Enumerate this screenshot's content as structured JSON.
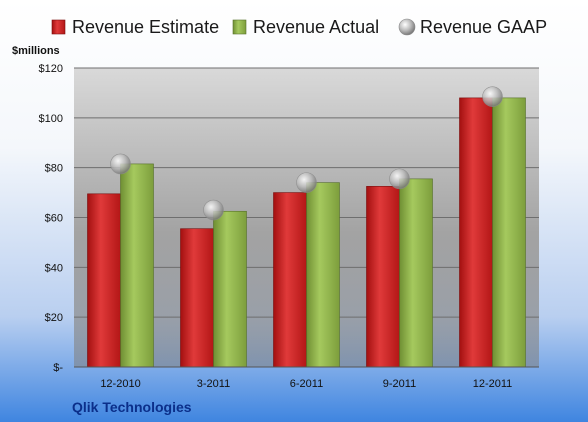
{
  "chart_data": {
    "type": "bar",
    "unit_label": "$millions",
    "company": "Qlik Technologies",
    "categories": [
      "12-2010",
      "3-2011",
      "6-2011",
      "9-2011",
      "12-2011"
    ],
    "series": [
      {
        "name": "Revenue Estimate",
        "kind": "bar",
        "color": "#cc1f1f",
        "values": [
          69.5,
          55.5,
          70,
          72.5,
          108
        ]
      },
      {
        "name": "Revenue Actual",
        "kind": "bar",
        "color": "#8fb34a",
        "values": [
          81.5,
          62.5,
          74,
          75.5,
          108
        ]
      },
      {
        "name": "Revenue GAAP",
        "kind": "marker",
        "color": "#b0b0b0",
        "values": [
          81.5,
          63,
          74,
          75.5,
          108.5
        ]
      }
    ],
    "ylim": [
      0,
      120
    ],
    "y_ticks": [
      0,
      20,
      40,
      60,
      80,
      100,
      120
    ],
    "y_tick_labels": [
      "$-",
      "$20",
      "$40",
      "$60",
      "$80",
      "$100",
      "$120"
    ],
    "grid": true,
    "legend_position": "top"
  }
}
